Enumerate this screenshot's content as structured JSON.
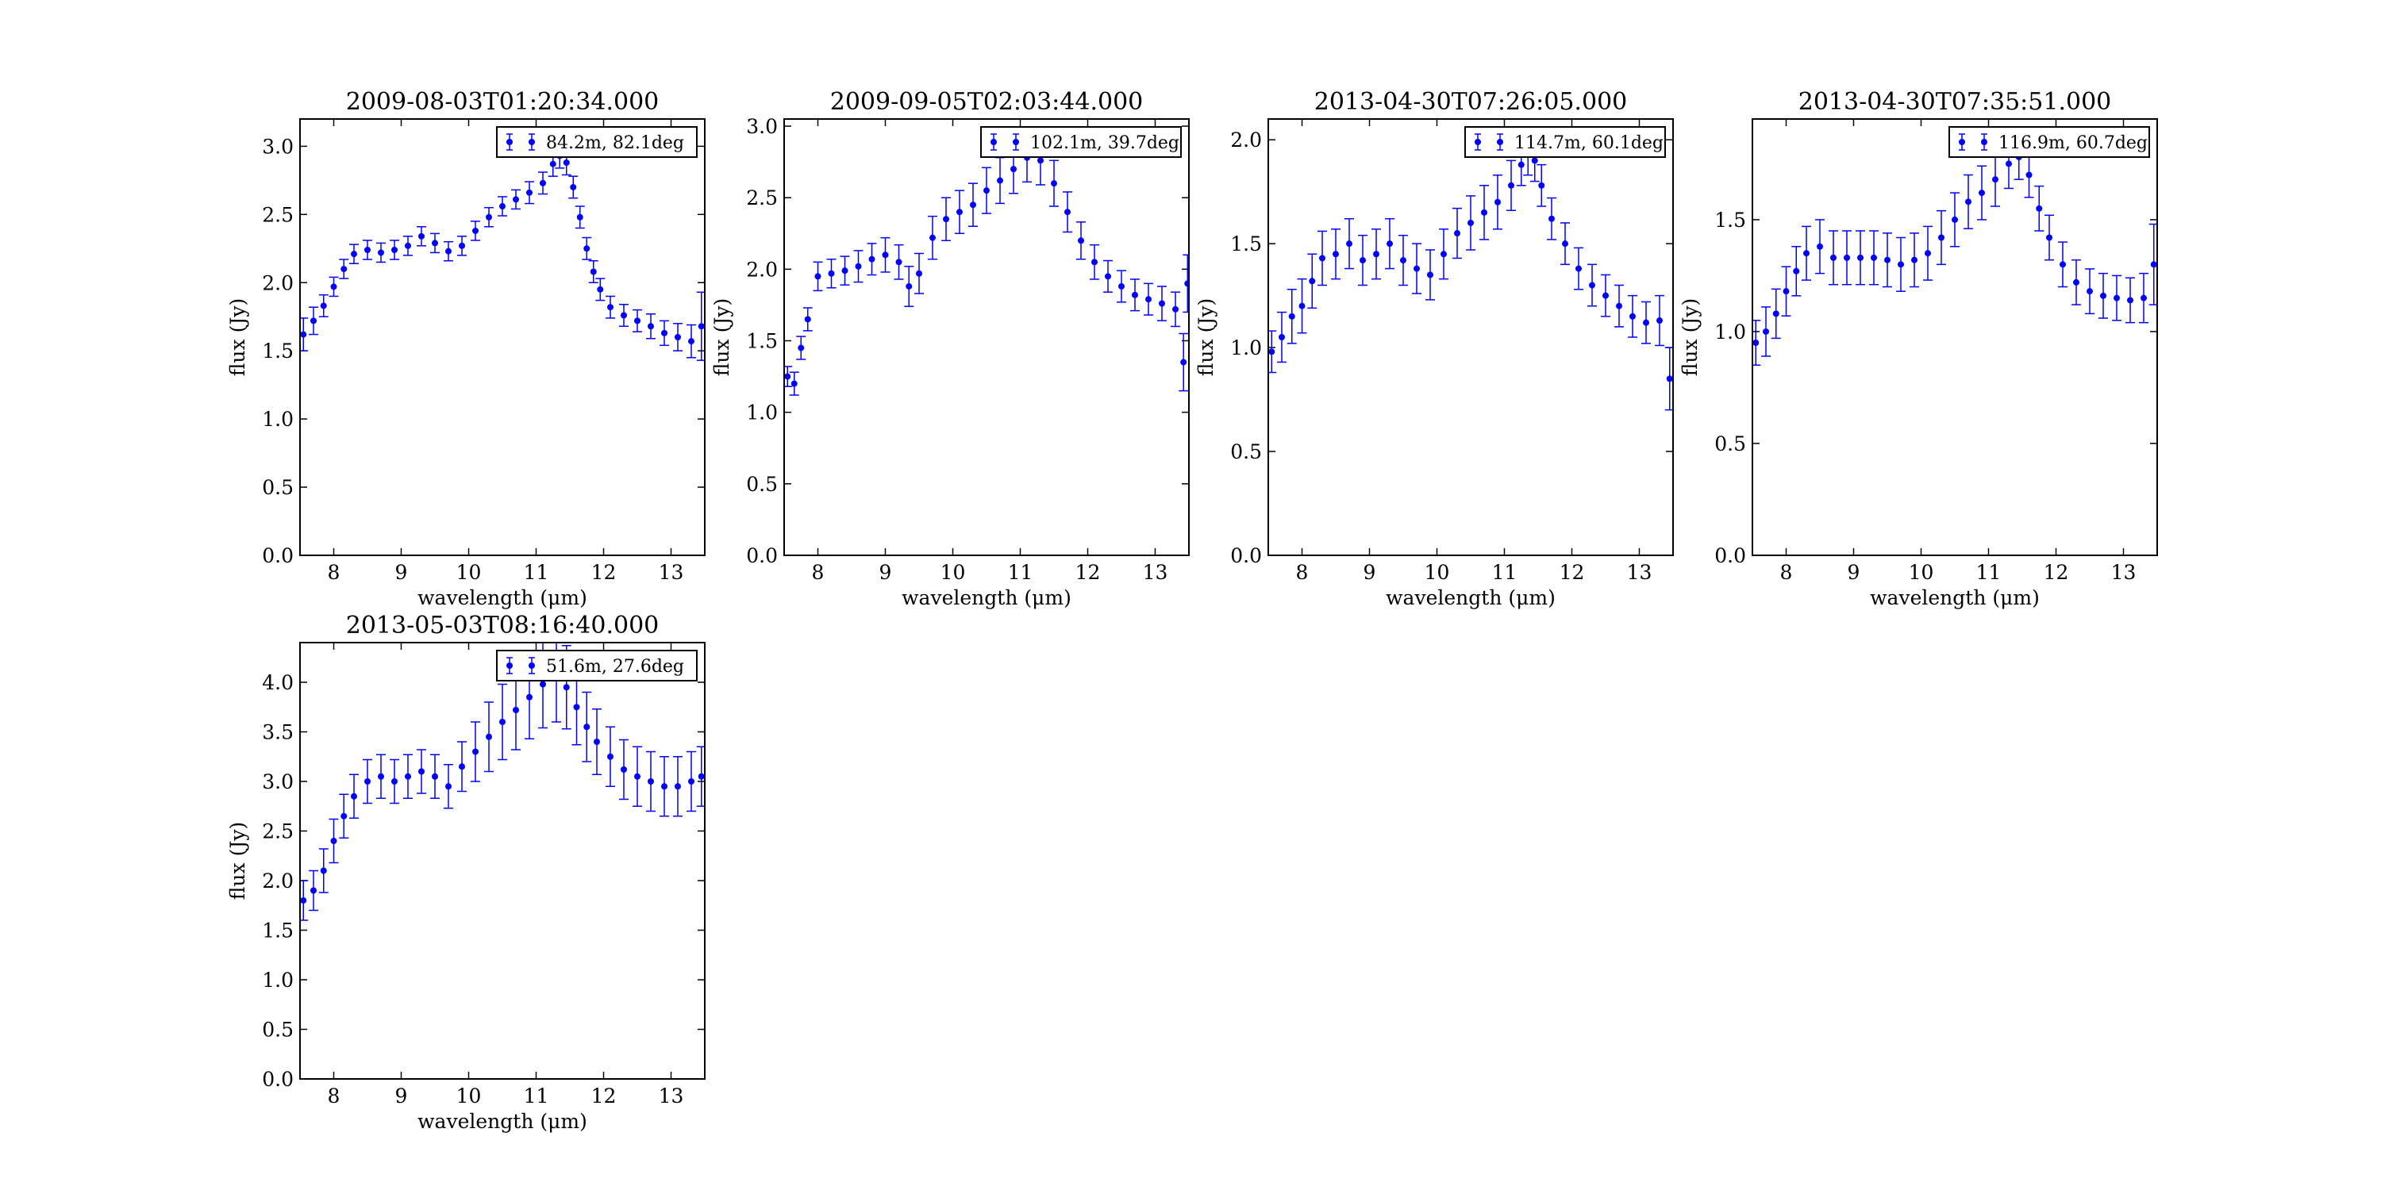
{
  "colors": {
    "series": "#0000ff",
    "axes": "#000000",
    "background": "#ffffff"
  },
  "chart_data": [
    {
      "type": "scatter",
      "title": "2009-08-03T01:20:34.000",
      "xlabel": "wavelength (μm)",
      "ylabel": "flux (Jy)",
      "xlim": [
        7.5,
        13.5
      ],
      "ylim": [
        0.0,
        3.2
      ],
      "x_ticks": [
        "8",
        "9",
        "10",
        "11",
        "12",
        "13"
      ],
      "y_ticks": [
        "0.0",
        "0.5",
        "1.0",
        "1.5",
        "2.0",
        "2.5",
        "3.0"
      ],
      "grid": false,
      "legend": {
        "label": "84.2m, 82.1deg",
        "position": "upper-right"
      },
      "series": [
        {
          "error_style": "errorbar",
          "x": [
            7.55,
            7.7,
            7.85,
            8.0,
            8.15,
            8.3,
            8.5,
            8.7,
            8.9,
            9.1,
            9.3,
            9.5,
            9.7,
            9.9,
            10.1,
            10.3,
            10.5,
            10.7,
            10.9,
            11.1,
            11.25,
            11.35,
            11.45,
            11.55,
            11.65,
            11.75,
            11.85,
            11.95,
            12.1,
            12.3,
            12.5,
            12.7,
            12.9,
            13.1,
            13.3,
            13.45
          ],
          "y": [
            1.62,
            1.72,
            1.83,
            1.97,
            2.1,
            2.21,
            2.24,
            2.22,
            2.24,
            2.27,
            2.34,
            2.29,
            2.23,
            2.27,
            2.38,
            2.48,
            2.56,
            2.61,
            2.66,
            2.73,
            2.87,
            2.93,
            2.88,
            2.7,
            2.48,
            2.25,
            2.08,
            1.95,
            1.82,
            1.76,
            1.72,
            1.68,
            1.63,
            1.6,
            1.57,
            1.68
          ],
          "yerr": [
            0.12,
            0.1,
            0.08,
            0.07,
            0.07,
            0.07,
            0.07,
            0.07,
            0.07,
            0.07,
            0.07,
            0.07,
            0.07,
            0.07,
            0.07,
            0.07,
            0.07,
            0.07,
            0.08,
            0.08,
            0.09,
            0.09,
            0.09,
            0.08,
            0.08,
            0.08,
            0.08,
            0.08,
            0.08,
            0.08,
            0.08,
            0.09,
            0.09,
            0.1,
            0.12,
            0.25
          ]
        }
      ]
    },
    {
      "type": "scatter",
      "title": "2009-09-05T02:03:44.000",
      "xlabel": "wavelength (μm)",
      "ylabel": "flux (Jy)",
      "xlim": [
        7.5,
        13.5
      ],
      "ylim": [
        0.0,
        3.05
      ],
      "x_ticks": [
        "8",
        "9",
        "10",
        "11",
        "12",
        "13"
      ],
      "y_ticks": [
        "0.0",
        "0.5",
        "1.0",
        "1.5",
        "2.0",
        "2.5",
        "3.0"
      ],
      "grid": false,
      "legend": {
        "label": "102.1m, 39.7deg",
        "position": "upper-right"
      },
      "series": [
        {
          "error_style": "errorbar",
          "x": [
            7.55,
            7.65,
            7.75,
            7.85,
            8.0,
            8.2,
            8.4,
            8.6,
            8.8,
            9.0,
            9.2,
            9.35,
            9.5,
            9.7,
            9.9,
            10.1,
            10.3,
            10.5,
            10.7,
            10.9,
            11.1,
            11.3,
            11.5,
            11.7,
            11.9,
            12.1,
            12.3,
            12.5,
            12.7,
            12.9,
            13.1,
            13.3,
            13.42,
            13.48
          ],
          "y": [
            1.25,
            1.2,
            1.45,
            1.65,
            1.95,
            1.97,
            1.99,
            2.02,
            2.07,
            2.1,
            2.05,
            1.88,
            1.97,
            2.22,
            2.35,
            2.4,
            2.45,
            2.55,
            2.62,
            2.7,
            2.78,
            2.76,
            2.6,
            2.4,
            2.2,
            2.05,
            1.95,
            1.88,
            1.82,
            1.79,
            1.76,
            1.72,
            1.35,
            1.9
          ],
          "yerr": [
            0.07,
            0.08,
            0.08,
            0.08,
            0.1,
            0.1,
            0.1,
            0.11,
            0.11,
            0.12,
            0.12,
            0.14,
            0.14,
            0.15,
            0.15,
            0.15,
            0.15,
            0.16,
            0.16,
            0.17,
            0.17,
            0.17,
            0.16,
            0.14,
            0.13,
            0.12,
            0.11,
            0.11,
            0.11,
            0.11,
            0.12,
            0.12,
            0.2,
            0.2
          ]
        }
      ]
    },
    {
      "type": "scatter",
      "title": "2013-04-30T07:26:05.000",
      "xlabel": "wavelength (μm)",
      "ylabel": "flux (Jy)",
      "xlim": [
        7.5,
        13.5
      ],
      "ylim": [
        0.0,
        2.1
      ],
      "x_ticks": [
        "8",
        "9",
        "10",
        "11",
        "12",
        "13"
      ],
      "y_ticks": [
        "0.0",
        "0.5",
        "1.0",
        "1.5",
        "2.0"
      ],
      "grid": false,
      "legend": {
        "label": "114.7m, 60.1deg",
        "position": "upper-right"
      },
      "series": [
        {
          "error_style": "errorbar",
          "x": [
            7.55,
            7.7,
            7.85,
            8.0,
            8.15,
            8.3,
            8.5,
            8.7,
            8.9,
            9.1,
            9.3,
            9.5,
            9.7,
            9.9,
            10.1,
            10.3,
            10.5,
            10.7,
            10.9,
            11.1,
            11.25,
            11.35,
            11.45,
            11.55,
            11.7,
            11.9,
            12.1,
            12.3,
            12.5,
            12.7,
            12.9,
            13.1,
            13.3,
            13.45
          ],
          "y": [
            0.98,
            1.05,
            1.15,
            1.2,
            1.32,
            1.43,
            1.45,
            1.5,
            1.42,
            1.45,
            1.5,
            1.42,
            1.38,
            1.35,
            1.45,
            1.55,
            1.6,
            1.65,
            1.7,
            1.78,
            1.88,
            1.93,
            1.9,
            1.78,
            1.62,
            1.5,
            1.38,
            1.3,
            1.25,
            1.2,
            1.15,
            1.12,
            1.13,
            0.85
          ],
          "yerr": [
            0.1,
            0.12,
            0.13,
            0.13,
            0.13,
            0.13,
            0.12,
            0.12,
            0.12,
            0.12,
            0.12,
            0.12,
            0.12,
            0.12,
            0.12,
            0.12,
            0.13,
            0.13,
            0.13,
            0.12,
            0.1,
            0.1,
            0.1,
            0.1,
            0.1,
            0.1,
            0.1,
            0.1,
            0.1,
            0.1,
            0.1,
            0.1,
            0.12,
            0.15
          ]
        }
      ]
    },
    {
      "type": "scatter",
      "title": "2013-04-30T07:35:51.000",
      "xlabel": "wavelength (μm)",
      "ylabel": "flux (Jy)",
      "xlim": [
        7.5,
        13.5
      ],
      "ylim": [
        0.0,
        1.95
      ],
      "x_ticks": [
        "8",
        "9",
        "10",
        "11",
        "12",
        "13"
      ],
      "y_ticks": [
        "0.0",
        "0.5",
        "1.0",
        "1.5"
      ],
      "grid": false,
      "legend": {
        "label": "116.9m, 60.7deg",
        "position": "upper-right"
      },
      "series": [
        {
          "error_style": "errorbar",
          "x": [
            7.55,
            7.7,
            7.85,
            8.0,
            8.15,
            8.3,
            8.5,
            8.7,
            8.9,
            9.1,
            9.3,
            9.5,
            9.7,
            9.9,
            10.1,
            10.3,
            10.5,
            10.7,
            10.9,
            11.1,
            11.3,
            11.45,
            11.6,
            11.75,
            11.9,
            12.1,
            12.3,
            12.5,
            12.7,
            12.9,
            13.1,
            13.3,
            13.45
          ],
          "y": [
            0.95,
            1.0,
            1.08,
            1.18,
            1.27,
            1.35,
            1.38,
            1.33,
            1.33,
            1.33,
            1.33,
            1.32,
            1.3,
            1.32,
            1.35,
            1.42,
            1.5,
            1.58,
            1.62,
            1.68,
            1.75,
            1.78,
            1.7,
            1.55,
            1.42,
            1.3,
            1.22,
            1.18,
            1.16,
            1.15,
            1.14,
            1.15,
            1.3
          ],
          "yerr": [
            0.1,
            0.11,
            0.11,
            0.11,
            0.11,
            0.12,
            0.12,
            0.12,
            0.12,
            0.12,
            0.12,
            0.12,
            0.12,
            0.12,
            0.12,
            0.12,
            0.12,
            0.12,
            0.12,
            0.12,
            0.11,
            0.1,
            0.1,
            0.1,
            0.1,
            0.1,
            0.1,
            0.1,
            0.1,
            0.1,
            0.1,
            0.11,
            0.18
          ]
        }
      ]
    },
    {
      "type": "scatter",
      "title": "2013-05-03T08:16:40.000",
      "xlabel": "wavelength (μm)",
      "ylabel": "flux (Jy)",
      "xlim": [
        7.5,
        13.5
      ],
      "ylim": [
        0.0,
        4.4
      ],
      "x_ticks": [
        "8",
        "9",
        "10",
        "11",
        "12",
        "13"
      ],
      "y_ticks": [
        "0.0",
        "0.5",
        "1.0",
        "1.5",
        "2.0",
        "2.5",
        "3.0",
        "3.5",
        "4.0"
      ],
      "grid": false,
      "legend": {
        "label": "51.6m, 27.6deg",
        "position": "upper-right"
      },
      "series": [
        {
          "error_style": "errorbar",
          "x": [
            7.55,
            7.7,
            7.85,
            8.0,
            8.15,
            8.3,
            8.5,
            8.7,
            8.9,
            9.1,
            9.3,
            9.5,
            9.7,
            9.9,
            10.1,
            10.3,
            10.5,
            10.7,
            10.9,
            11.1,
            11.3,
            11.45,
            11.6,
            11.75,
            11.9,
            12.1,
            12.3,
            12.5,
            12.7,
            12.9,
            13.1,
            13.3,
            13.45
          ],
          "y": [
            1.8,
            1.9,
            2.1,
            2.4,
            2.65,
            2.85,
            3.0,
            3.05,
            3.0,
            3.05,
            3.1,
            3.05,
            2.95,
            3.15,
            3.3,
            3.45,
            3.6,
            3.72,
            3.85,
            3.98,
            4.05,
            3.95,
            3.75,
            3.55,
            3.4,
            3.25,
            3.12,
            3.05,
            3.0,
            2.95,
            2.95,
            3.0,
            3.05
          ],
          "yerr": [
            0.2,
            0.2,
            0.22,
            0.22,
            0.22,
            0.22,
            0.22,
            0.22,
            0.22,
            0.22,
            0.22,
            0.22,
            0.22,
            0.25,
            0.3,
            0.35,
            0.38,
            0.4,
            0.42,
            0.44,
            0.45,
            0.42,
            0.38,
            0.35,
            0.33,
            0.3,
            0.3,
            0.3,
            0.3,
            0.3,
            0.3,
            0.3,
            0.3
          ]
        }
      ]
    }
  ]
}
